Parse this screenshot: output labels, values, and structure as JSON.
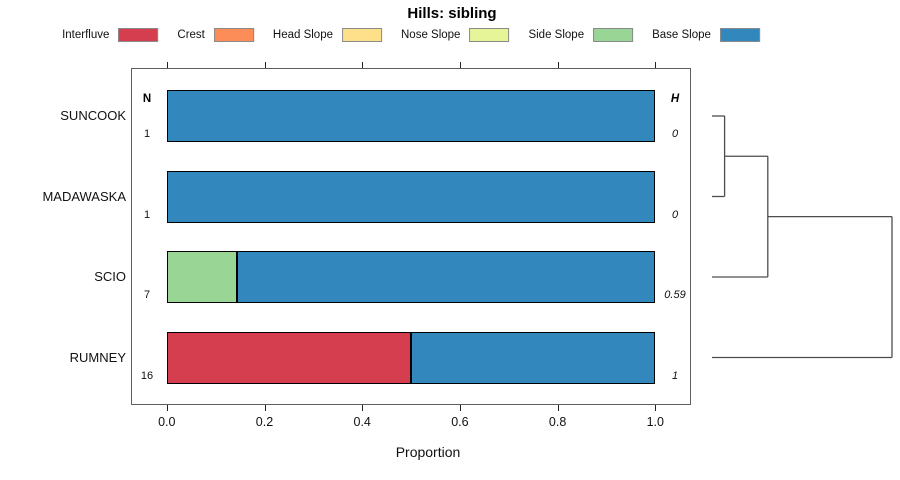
{
  "title": "Hills: sibling",
  "legend": {
    "items": [
      {
        "label": "Interfluve",
        "color": "#d53e4f"
      },
      {
        "label": "Crest",
        "color": "#fc8d59"
      },
      {
        "label": "Head Slope",
        "color": "#fee08b"
      },
      {
        "label": "Nose Slope",
        "color": "#e6f598"
      },
      {
        "label": "Side Slope",
        "color": "#99d594"
      },
      {
        "label": "Base Slope",
        "color": "#3288bd"
      }
    ]
  },
  "columns": {
    "n_header": "N",
    "h_header": "H"
  },
  "chart_data": {
    "type": "bar",
    "orientation": "horizontal-stacked",
    "title": "Hills: sibling",
    "xlabel": "Proportion",
    "xlim": [
      0,
      1
    ],
    "x_ticks": [
      0.0,
      0.2,
      0.4,
      0.6,
      0.8,
      1.0
    ],
    "x_tick_labels": [
      "0.0",
      "0.2",
      "0.4",
      "0.6",
      "0.8",
      "1.0"
    ],
    "grid": false,
    "legend_position": "top",
    "classes": [
      "Interfluve",
      "Crest",
      "Head Slope",
      "Nose Slope",
      "Side Slope",
      "Base Slope"
    ],
    "class_colors": {
      "Interfluve": "#d53e4f",
      "Crest": "#fc8d59",
      "Head Slope": "#fee08b",
      "Nose Slope": "#e6f598",
      "Side Slope": "#99d594",
      "Base Slope": "#3288bd"
    },
    "rows": [
      {
        "category": "SUNCOOK",
        "N": "1",
        "H": "0",
        "segments": [
          {
            "class": "Base Slope",
            "value": 1.0
          }
        ]
      },
      {
        "category": "MADAWASKA",
        "N": "1",
        "H": "0",
        "segments": [
          {
            "class": "Base Slope",
            "value": 1.0
          }
        ]
      },
      {
        "category": "SCIO",
        "N": "7",
        "H": "0.59",
        "segments": [
          {
            "class": "Side Slope",
            "value": 0.143
          },
          {
            "class": "Base Slope",
            "value": 0.857
          }
        ]
      },
      {
        "category": "RUMNEY",
        "N": "16",
        "H": "1",
        "segments": [
          {
            "class": "Interfluve",
            "value": 0.5
          },
          {
            "class": "Base Slope",
            "value": 0.5
          }
        ]
      }
    ],
    "dendrogram": {
      "leaf_order": [
        "SUNCOOK",
        "MADAWASKA",
        "SCIO",
        "RUMNEY"
      ],
      "merges": [
        {
          "a": "SUNCOOK",
          "b": "MADAWASKA",
          "height": 0.07
        },
        {
          "a": "merge0",
          "b": "SCIO",
          "height": 0.31
        },
        {
          "a": "merge1",
          "b": "RUMNEY",
          "height": 1.0
        }
      ]
    }
  }
}
